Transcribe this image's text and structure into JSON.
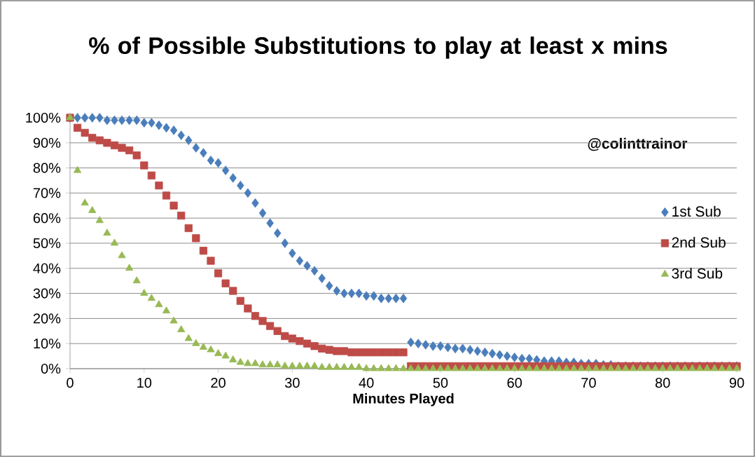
{
  "chart_data": {
    "type": "scatter",
    "title": "% of Possible Substitutions to play at least x mins",
    "xlabel": "Minutes Played",
    "annotations": [
      "@colinttrainor"
    ],
    "x": [
      0,
      1,
      2,
      3,
      4,
      5,
      6,
      7,
      8,
      9,
      10,
      11,
      12,
      13,
      14,
      15,
      16,
      17,
      18,
      19,
      20,
      21,
      22,
      23,
      24,
      25,
      26,
      27,
      28,
      29,
      30,
      31,
      32,
      33,
      34,
      35,
      36,
      37,
      38,
      39,
      40,
      41,
      42,
      43,
      44,
      45,
      46,
      47,
      48,
      49,
      50,
      51,
      52,
      53,
      54,
      55,
      56,
      57,
      58,
      59,
      60,
      61,
      62,
      63,
      64,
      65,
      66,
      67,
      68,
      69,
      70,
      71,
      72,
      73,
      74,
      75,
      76,
      77,
      78,
      79,
      80,
      81,
      82,
      83,
      84,
      85,
      86,
      87,
      88,
      89,
      90
    ],
    "series": [
      {
        "name": "1st Sub",
        "color": "#4a7ebb",
        "marker": "diamond",
        "values": [
          100,
          100,
          100,
          100,
          100,
          99,
          99,
          99,
          99,
          99,
          98,
          98,
          97,
          96,
          95,
          93,
          91,
          88,
          86,
          83,
          82,
          79,
          76,
          73,
          70,
          66,
          62,
          58,
          54,
          50,
          46,
          43,
          41,
          39,
          36,
          33,
          31,
          30,
          30,
          30,
          29,
          29,
          28,
          28,
          28,
          28,
          10.5,
          10,
          9.5,
          9,
          9,
          8.5,
          8,
          8,
          7.5,
          7,
          6.5,
          6,
          5.5,
          5,
          4.5,
          4,
          4,
          3.5,
          3,
          3,
          3,
          2.5,
          2.5,
          2,
          2,
          2,
          1.5,
          1.5,
          1,
          1,
          1,
          1,
          1,
          1,
          1,
          1,
          1,
          1,
          1,
          1,
          1,
          1,
          1,
          1,
          1
        ]
      },
      {
        "name": "2nd Sub",
        "color": "#be4b48",
        "marker": "square",
        "values": [
          100,
          96,
          94,
          92,
          91,
          90,
          89,
          88,
          87,
          85,
          81,
          77,
          73,
          69,
          65,
          61,
          56,
          52,
          47,
          43,
          38,
          34,
          31,
          27,
          24,
          21,
          19,
          17,
          15,
          13,
          12,
          11,
          10,
          9,
          8,
          7.5,
          7,
          7,
          6.5,
          6.5,
          6.5,
          6.5,
          6.5,
          6.5,
          6.5,
          6.5,
          1,
          1,
          1,
          1,
          1,
          1,
          1,
          1,
          1,
          1,
          1,
          1,
          1,
          1,
          1,
          1,
          1,
          1,
          1,
          1,
          1,
          1,
          1,
          1,
          1,
          1,
          1,
          1,
          1,
          1,
          1,
          1,
          1,
          1,
          1,
          1,
          1,
          1,
          1,
          1,
          1,
          1,
          1,
          1,
          1
        ]
      },
      {
        "name": "3rd Sub",
        "color": "#98b954",
        "marker": "triangle",
        "values": [
          100,
          79,
          66,
          63,
          59,
          54,
          50,
          45,
          40,
          35,
          30,
          28,
          25.5,
          23,
          19,
          15.5,
          12,
          10,
          8.5,
          7.5,
          6,
          5,
          3.5,
          2.5,
          2,
          2,
          1.5,
          1.5,
          1.5,
          1,
          1,
          1,
          1,
          1,
          0.5,
          0.5,
          0.5,
          0.5,
          0.5,
          0.5,
          0,
          0,
          0,
          0,
          0,
          0,
          0,
          0,
          0,
          0,
          0,
          0,
          0,
          0,
          0,
          0,
          0,
          0,
          0,
          0,
          0,
          0,
          0,
          0,
          0,
          0,
          0,
          0,
          0,
          0,
          0,
          0,
          0,
          0,
          0,
          0,
          0,
          0,
          0,
          0,
          0,
          0,
          0,
          0,
          0,
          0,
          0,
          0,
          0,
          0,
          0
        ]
      }
    ],
    "xlim": [
      0,
      90
    ],
    "xticks": [
      0,
      10,
      20,
      30,
      40,
      50,
      60,
      70,
      80,
      90
    ],
    "ylim": [
      0,
      100
    ],
    "yticks": [
      {
        "value": 0,
        "label": "0%"
      },
      {
        "value": 10,
        "label": "10%"
      },
      {
        "value": 20,
        "label": "20%"
      },
      {
        "value": 30,
        "label": "30%"
      },
      {
        "value": 40,
        "label": "40%"
      },
      {
        "value": 50,
        "label": "50%"
      },
      {
        "value": 60,
        "label": "60%"
      },
      {
        "value": 70,
        "label": "70%"
      },
      {
        "value": 80,
        "label": "80%"
      },
      {
        "value": 90,
        "label": "90%"
      },
      {
        "value": 100,
        "label": "100%"
      }
    ],
    "grid": "y",
    "legend": "right"
  }
}
